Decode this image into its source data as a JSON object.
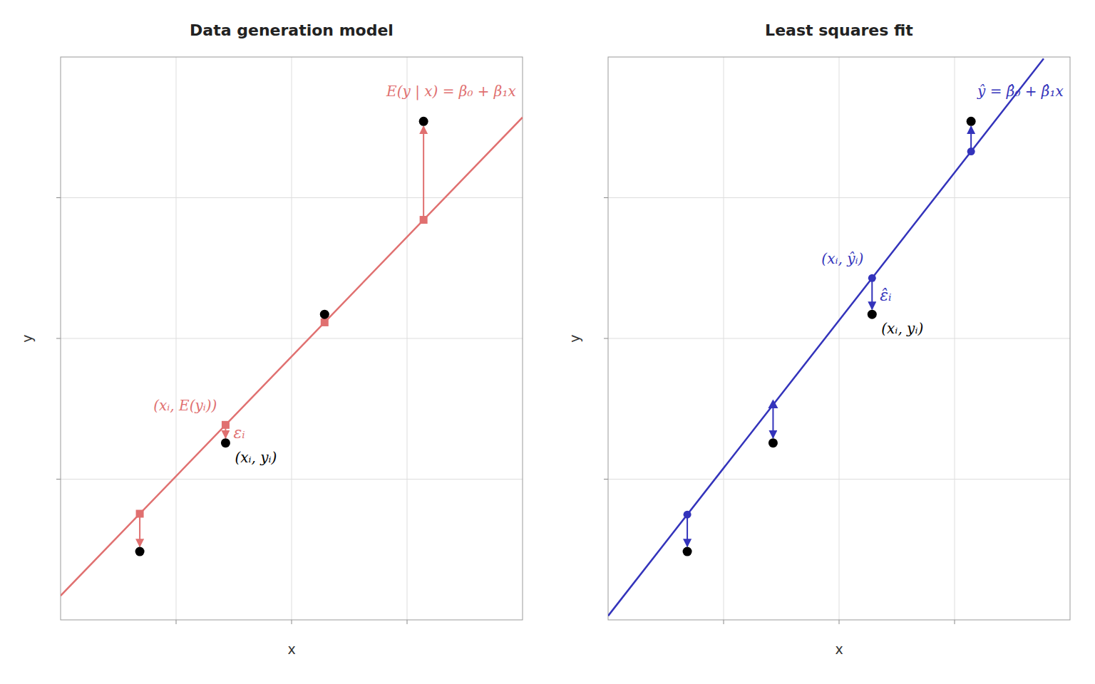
{
  "chart_data": [
    {
      "type": "scatter",
      "title": "Data generation model",
      "x_label": "x",
      "y_label": "y",
      "xlim": [
        0,
        7
      ],
      "ylim": [
        0,
        7
      ],
      "xticks": [
        1.75,
        3.5,
        5.25
      ],
      "yticks": [
        1.75,
        3.5,
        5.25
      ],
      "grid": true,
      "tick_labels": false,
      "series": [
        {
          "type": "line",
          "color": "#e07070",
          "x": [
            0,
            7
          ],
          "values": [
            0.3,
            6.25
          ]
        },
        {
          "type": "scatter",
          "marker": "square",
          "color": "#e07070",
          "x": [
            1.2,
            2.5,
            4.0,
            5.5
          ],
          "values": [
            1.32,
            2.425,
            3.7,
            4.975
          ]
        },
        {
          "type": "scatter",
          "marker": "circle",
          "color": "#000000",
          "x": [
            1.2,
            2.5,
            4.0,
            5.5
          ],
          "values": [
            0.85,
            2.2,
            3.8,
            6.2
          ]
        }
      ],
      "annotations": [
        {
          "text": "(xᵢ, E(yᵢ))",
          "color": "#e07070",
          "x": 2.5,
          "y": 2.425
        },
        {
          "text": "εᵢ",
          "color": "#e07070",
          "x": 2.5,
          "y": 2.3125
        },
        {
          "text": "(xᵢ, yᵢ)",
          "color": "#000000",
          "x": 2.5,
          "y": 2.2
        },
        {
          "text": "E(y | x) = β₀ + β₁x",
          "color": "#e07070",
          "x": 6.9,
          "y": 6.65
        }
      ]
    },
    {
      "type": "scatter",
      "title": "Least squares fit",
      "x_label": "x",
      "y_label": "y",
      "xlim": [
        0,
        7
      ],
      "ylim": [
        0,
        7
      ],
      "xticks": [
        1.75,
        3.5,
        5.25
      ],
      "yticks": [
        1.75,
        3.5,
        5.25
      ],
      "grid": true,
      "tick_labels": false,
      "series": [
        {
          "type": "line",
          "color": "#3333bb",
          "x": [
            0,
            6.6
          ],
          "values": [
            0.05,
            6.98
          ]
        },
        {
          "type": "scatter",
          "marker": "circle",
          "color": "#3333bb",
          "x": [
            1.2,
            4.0,
            5.5
          ],
          "values": [
            1.31,
            4.25,
            5.825
          ]
        },
        {
          "type": "scatter",
          "marker": "triangle",
          "color": "#3333bb",
          "x": [
            2.5
          ],
          "values": [
            2.675
          ]
        },
        {
          "type": "scatter",
          "marker": "circle",
          "color": "#000000",
          "x": [
            1.2,
            2.5,
            4.0,
            5.5
          ],
          "values": [
            0.85,
            2.2,
            3.8,
            6.2
          ]
        }
      ],
      "annotations": [
        {
          "text": "(xᵢ, ŷᵢ)",
          "color": "#3333bb",
          "x": 4.0,
          "y": 4.25
        },
        {
          "text": "ε̂ᵢ",
          "color": "#3333bb",
          "x": 4.0,
          "y": 4.025
        },
        {
          "text": "(xᵢ, yᵢ)",
          "color": "#000000",
          "x": 4.0,
          "y": 3.8
        },
        {
          "text": "ŷ = β̂₀ + β̂₁x",
          "color": "#3333bb",
          "x": 6.9,
          "y": 6.65
        }
      ]
    }
  ]
}
